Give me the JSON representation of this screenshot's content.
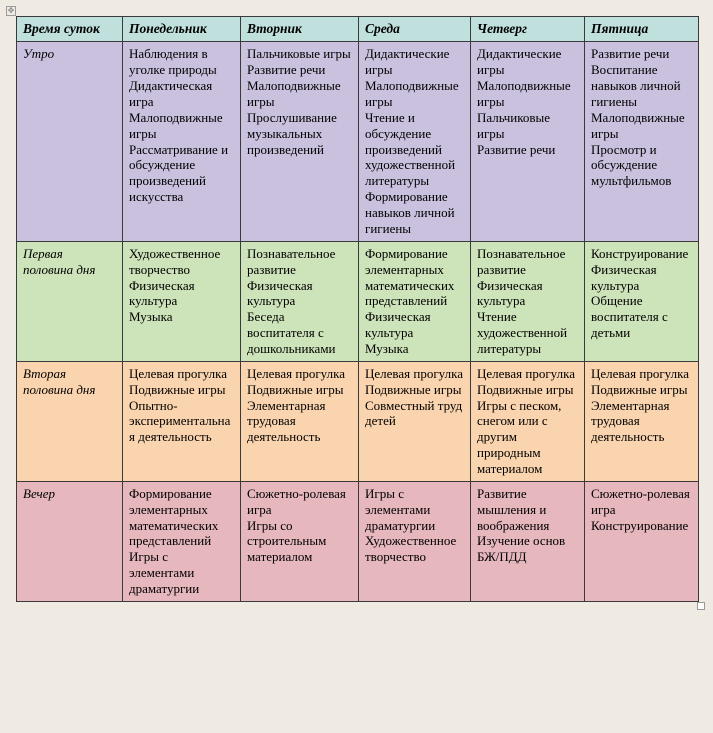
{
  "table": {
    "header_bg": "#bfe0dd",
    "columns": [
      "Время суток",
      "Понедельник",
      "Вторник",
      "Среда",
      "Четверг",
      "Пятница"
    ],
    "rows": [
      {
        "label": "Утро",
        "bg": "#c9c1de",
        "cells": [
          [
            "Наблюдения в уголке природы",
            "Дидактическая игра",
            "Малоподвижные игры",
            "Рассматривание и обсуждение произведений искусства"
          ],
          [
            "Пальчиковые игры",
            "Развитие речи",
            "Малоподвижные игры",
            "Прослушивание музыкальных произведений"
          ],
          [
            "Дидактические игры",
            "Малоподвижные игры",
            "Чтение и обсуждение произведений художественной литературы",
            "Формирование навыков личной гигиены"
          ],
          [
            "Дидактические игры",
            "Малоподвижные игры",
            "Пальчиковые игры",
            "Развитие речи"
          ],
          [
            "Развитие речи",
            "Воспитание навыков личной гигиены",
            "Малоподвижные игры",
            "Просмотр и обсуждение мультфильмов"
          ]
        ]
      },
      {
        "label": "Первая половина дня",
        "bg": "#cde3b9",
        "cells": [
          [
            "Художественное творчество",
            "Физическая культура",
            "Музыка"
          ],
          [
            "Познавательное развитие",
            "Физическая культура",
            "Беседа воспитателя с дошкольниками"
          ],
          [
            "Формирование элементарных математических представлений",
            "Физическая культура",
            "Музыка"
          ],
          [
            "Познавательное развитие",
            "Физическая культура",
            "Чтение художественной литературы"
          ],
          [
            "Конструирование",
            "Физическая культура",
            "Общение воспитателя с детьми"
          ]
        ]
      },
      {
        "label": "Вторая половина дня",
        "bg": "#fad4ae",
        "cells": [
          [
            "Целевая прогулка",
            "Подвижные игры",
            "Опытно-экспериментальная деятельность"
          ],
          [
            "Целевая прогулка",
            "Подвижные игры",
            "Элементарная трудовая деятельность"
          ],
          [
            "Целевая прогулка",
            "Подвижные игры",
            "Совместный труд детей"
          ],
          [
            "Целевая прогулка",
            "Подвижные игры",
            "Игры с песком, снегом или с другим природным материалом"
          ],
          [
            "Целевая прогулка",
            "Подвижные игры",
            "Элементарная трудовая деятельность"
          ]
        ]
      },
      {
        "label": "Вечер",
        "bg": "#e6b7bd",
        "cells": [
          [
            "Формирование элементарных математических представлений",
            "Игры с элементами драматургии"
          ],
          [
            "Сюжетно-ролевая игра",
            "Игры со строительным материалом"
          ],
          [
            "Игры с элементами драматургии",
            "Художественное творчество"
          ],
          [
            "Развитие мышления и воображения",
            "Изучение основ БЖ/ПДД"
          ],
          [
            "Сюжетно-ролевая игра",
            "Конструирование"
          ]
        ]
      }
    ]
  }
}
